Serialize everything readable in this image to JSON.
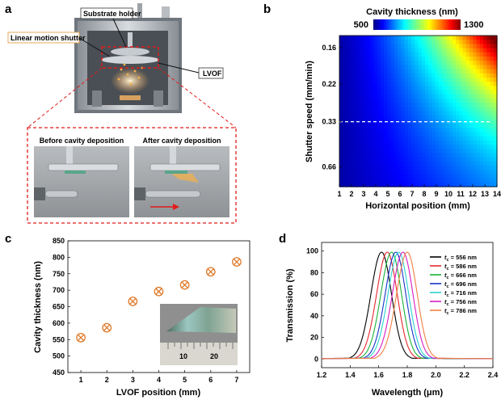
{
  "panel_labels": {
    "a": "a",
    "b": "b",
    "c": "c",
    "d": "d"
  },
  "panel_a": {
    "callouts": {
      "substrate_holder": "Substrate holder",
      "shutter": "Linear motion shutter",
      "lvof": "LVOF"
    },
    "insets": {
      "before": "Before cavity deposition",
      "after": "After cavity deposition"
    }
  },
  "chart_data": [
    {
      "panel": "b",
      "type": "heatmap",
      "title": "Cavity thickness (nm)",
      "colorbar_min_label": "500",
      "colorbar_max_label": "1300",
      "colorbar_range": [
        500,
        1300
      ],
      "xlabel": "Horizontal position (mm)",
      "ylabel": "Shutter speed (mm/min)",
      "x_ticks": [
        "1",
        "2",
        "3",
        "4",
        "5",
        "6",
        "7",
        "8",
        "9",
        "10",
        "11",
        "12",
        "13",
        "14"
      ],
      "y_ticks": [
        "0.16",
        "0.22",
        "0.33",
        "0.66"
      ],
      "xlim": [
        1,
        14
      ],
      "y_tick_positions": [
        0.92,
        0.68,
        0.43,
        0.13
      ],
      "dashed_line_at": "0.33"
    },
    {
      "panel": "c",
      "type": "scatter",
      "xlabel": "LVOF position (mm)",
      "ylabel": "Cavity thickness (nm)",
      "x": [
        1,
        2,
        3,
        4,
        5,
        6,
        7
      ],
      "y": [
        556,
        586,
        666,
        696,
        716,
        756,
        786
      ],
      "xlim": [
        0.5,
        7.5
      ],
      "ylim": [
        450,
        850
      ],
      "x_ticks": [
        "1",
        "2",
        "3",
        "4",
        "5",
        "6",
        "7"
      ],
      "y_ticks": [
        "450",
        "500",
        "550",
        "600",
        "650",
        "700",
        "750",
        "800",
        "850"
      ],
      "inset_ticks": [
        "10",
        "20"
      ],
      "marker_color": "#e07a2a"
    },
    {
      "panel": "d",
      "type": "line",
      "xlabel": "Wavelength (μm)",
      "ylabel": "Transmission (%)",
      "xlim": [
        1.2,
        2.4
      ],
      "ylim": [
        -8,
        108
      ],
      "x_ticks": [
        "1.2",
        "1.4",
        "1.6",
        "1.8",
        "2.0",
        "2.2",
        "2.4"
      ],
      "y_ticks": [
        "0",
        "20",
        "40",
        "60",
        "80",
        "100"
      ],
      "legend_prefix": "t",
      "legend_sub": "c",
      "series": [
        {
          "name": "= 556 nm",
          "peak_um": 1.62,
          "color": "#000000"
        },
        {
          "name": "= 586 nm",
          "peak_um": 1.66,
          "color": "#e8282d"
        },
        {
          "name": "= 666 nm",
          "peak_um": 1.69,
          "color": "#1ab23a"
        },
        {
          "name": "= 696 nm",
          "peak_um": 1.72,
          "color": "#1533c8"
        },
        {
          "name": "= 716 nm",
          "peak_um": 1.74,
          "color": "#2ad3cf"
        },
        {
          "name": "= 756 nm",
          "peak_um": 1.77,
          "color": "#d41fc2"
        },
        {
          "name": "= 786 nm",
          "peak_um": 1.8,
          "color": "#f08040"
        }
      ]
    }
  ]
}
